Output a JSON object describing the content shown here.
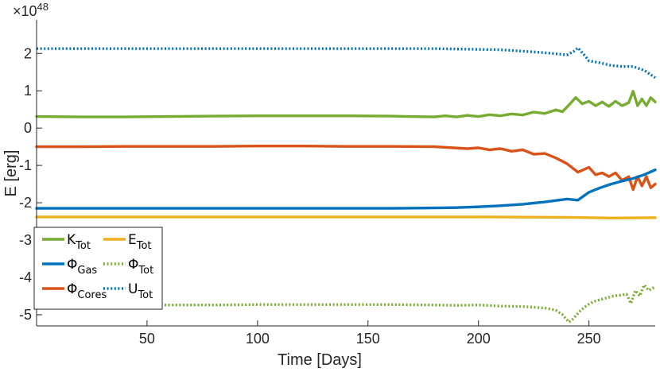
{
  "chart_data": {
    "type": "line",
    "xlabel": "Time [Days]",
    "ylabel": "E [erg]",
    "y_exponent_label": "×10",
    "y_exponent": "48",
    "xlim": [
      0,
      280
    ],
    "ylim": [
      -5.3,
      2.9
    ],
    "xticks": [
      50,
      100,
      150,
      200,
      250
    ],
    "yticks": [
      -5,
      -4,
      -3,
      -2,
      -1,
      0,
      1,
      2
    ],
    "grid": false,
    "legend_position": "bottom-left",
    "series": [
      {
        "name": "K",
        "sub": "Tot",
        "color": "#77AC30",
        "style": "solid",
        "x": [
          0,
          20,
          40,
          60,
          80,
          100,
          120,
          140,
          160,
          180,
          185,
          190,
          195,
          200,
          205,
          210,
          215,
          220,
          225,
          230,
          235,
          238,
          241,
          244,
          247,
          250,
          253,
          256,
          259,
          262,
          265,
          268,
          270,
          272,
          274,
          276,
          278,
          280
        ],
        "values": [
          0.31,
          0.3,
          0.3,
          0.31,
          0.32,
          0.33,
          0.33,
          0.33,
          0.32,
          0.3,
          0.33,
          0.3,
          0.34,
          0.31,
          0.36,
          0.33,
          0.38,
          0.35,
          0.43,
          0.39,
          0.49,
          0.44,
          0.62,
          0.82,
          0.65,
          0.72,
          0.6,
          0.7,
          0.58,
          0.72,
          0.6,
          0.68,
          0.99,
          0.6,
          0.78,
          0.6,
          0.82,
          0.7
        ]
      },
      {
        "name": "Φ",
        "sub": "Cores",
        "color": "#D95319",
        "style": "solid",
        "x": [
          0,
          20,
          40,
          60,
          80,
          100,
          120,
          140,
          160,
          180,
          195,
          200,
          205,
          210,
          215,
          220,
          225,
          230,
          235,
          240,
          245,
          250,
          253,
          256,
          259,
          262,
          265,
          268,
          270,
          272,
          274,
          276,
          278,
          280
        ],
        "values": [
          -0.5,
          -0.5,
          -0.49,
          -0.49,
          -0.49,
          -0.48,
          -0.48,
          -0.49,
          -0.49,
          -0.5,
          -0.55,
          -0.53,
          -0.58,
          -0.55,
          -0.62,
          -0.58,
          -0.7,
          -0.68,
          -0.8,
          -0.95,
          -1.18,
          -1.05,
          -1.25,
          -1.2,
          -1.3,
          -1.2,
          -1.4,
          -1.3,
          -1.65,
          -1.3,
          -1.55,
          -1.3,
          -1.6,
          -1.5
        ]
      },
      {
        "name": "U",
        "sub": "Tot",
        "color": "#0072BD",
        "style": "dotted",
        "x": [
          0,
          20,
          40,
          60,
          80,
          100,
          120,
          140,
          160,
          180,
          190,
          200,
          210,
          220,
          230,
          240,
          243,
          245,
          248,
          250,
          255,
          260,
          265,
          270,
          275,
          280
        ],
        "values": [
          2.13,
          2.13,
          2.13,
          2.13,
          2.13,
          2.13,
          2.13,
          2.13,
          2.13,
          2.13,
          2.12,
          2.11,
          2.1,
          2.06,
          2.02,
          1.96,
          2.05,
          2.15,
          1.95,
          1.8,
          1.75,
          1.68,
          1.65,
          1.65,
          1.55,
          1.35
        ]
      },
      {
        "name": "Φ",
        "sub": "Gas",
        "color": "#0072BD",
        "style": "solid",
        "x": [
          0,
          20,
          40,
          60,
          80,
          100,
          120,
          140,
          160,
          180,
          190,
          200,
          210,
          220,
          230,
          240,
          245,
          250,
          255,
          260,
          265,
          270,
          275,
          280
        ],
        "values": [
          -2.15,
          -2.15,
          -2.15,
          -2.15,
          -2.15,
          -2.15,
          -2.15,
          -2.15,
          -2.15,
          -2.14,
          -2.13,
          -2.11,
          -2.08,
          -2.04,
          -1.98,
          -1.9,
          -1.93,
          -1.72,
          -1.6,
          -1.5,
          -1.42,
          -1.35,
          -1.25,
          -1.12
        ]
      },
      {
        "name": "E",
        "sub": "Tot",
        "color": "#EDB120",
        "style": "solid",
        "x": [
          0,
          50,
          100,
          150,
          200,
          240,
          260,
          280
        ],
        "values": [
          -2.38,
          -2.38,
          -2.38,
          -2.38,
          -2.38,
          -2.39,
          -2.41,
          -2.4
        ]
      },
      {
        "name": "Φ",
        "sub": "Tot",
        "color": "#77AC30",
        "style": "dotted",
        "x": [
          0,
          20,
          40,
          60,
          80,
          100,
          120,
          140,
          160,
          180,
          190,
          200,
          210,
          220,
          230,
          235,
          238,
          241,
          243,
          246,
          249,
          252,
          255,
          258,
          261,
          264,
          267,
          269,
          271,
          273,
          275,
          277,
          280
        ],
        "values": [
          -4.75,
          -4.75,
          -4.75,
          -4.74,
          -4.74,
          -4.73,
          -4.73,
          -4.73,
          -4.73,
          -4.74,
          -4.75,
          -4.74,
          -4.77,
          -4.78,
          -4.82,
          -4.88,
          -5.0,
          -5.2,
          -5.1,
          -4.9,
          -4.75,
          -4.65,
          -4.6,
          -4.55,
          -4.5,
          -4.48,
          -4.45,
          -4.7,
          -4.35,
          -4.5,
          -4.2,
          -4.35,
          -4.25
        ]
      }
    ],
    "legend": [
      {
        "name": "K",
        "sub": "Tot",
        "color": "#77AC30",
        "style": "solid"
      },
      {
        "name": "E",
        "sub": "Tot",
        "color": "#EDB120",
        "style": "solid"
      },
      {
        "name": "Φ",
        "sub": "Gas",
        "color": "#0072BD",
        "style": "solid"
      },
      {
        "name": "Φ",
        "sub": "Tot",
        "color": "#77AC30",
        "style": "dotted"
      },
      {
        "name": "Φ",
        "sub": "Cores",
        "color": "#D95319",
        "style": "solid"
      },
      {
        "name": "U",
        "sub": "Tot",
        "color": "#0072BD",
        "style": "dotted"
      }
    ]
  }
}
